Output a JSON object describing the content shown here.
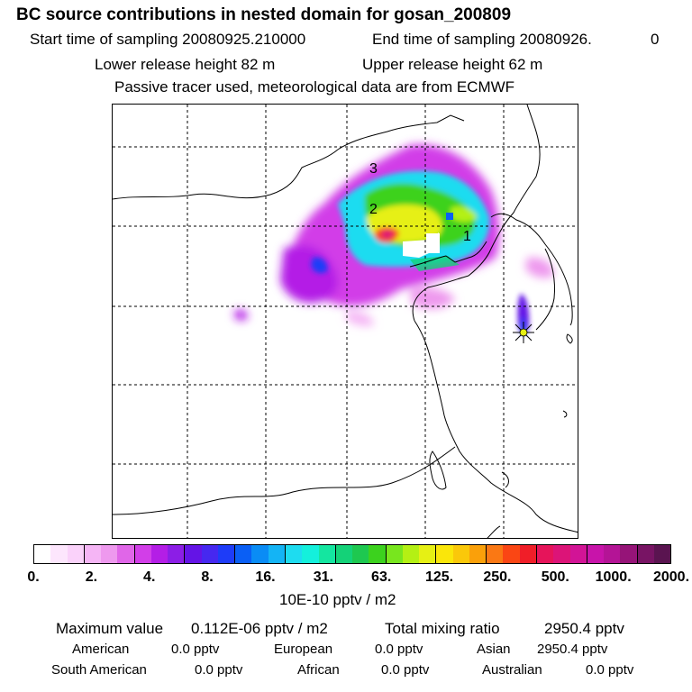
{
  "header": {
    "title": "BC  source contributions in nested domain for gosan_200809",
    "start_label": "Start time of sampling 20080925.210000",
    "end_label": "End time of sampling 20080926.",
    "end_value": "0",
    "lower_height": "Lower release height   82 m",
    "upper_height": "Upper release height   62 m",
    "tracer_note": "Passive tracer used, meteorological data are from ECMWF"
  },
  "map": {
    "markers": [
      "1",
      "2",
      "3"
    ],
    "receptor_icon": "star-burst-icon"
  },
  "colorbar": {
    "colors": [
      "#ffffff",
      "#fde6fd",
      "#fad2fa",
      "#f5b5f5",
      "#ee99ee",
      "#e066e8",
      "#d23ee8",
      "#b41ee6",
      "#8c1ee6",
      "#6414e6",
      "#4628f0",
      "#1e3cf8",
      "#0a5ff5",
      "#0a8cf5",
      "#14b4f5",
      "#1edcf0",
      "#14f0dc",
      "#14e6a0",
      "#14d278",
      "#1ec850",
      "#3cd21e",
      "#78e61e",
      "#b4f014",
      "#e6f014",
      "#fae60a",
      "#fac80a",
      "#faa00a",
      "#fa7814",
      "#fa4614",
      "#f01e28",
      "#e6145a",
      "#dc1478",
      "#d21496",
      "#c814aa",
      "#b41496",
      "#961478",
      "#781464",
      "#5a1450"
    ],
    "ticks": [
      "0.",
      "2.",
      "4.",
      "8.",
      "16.",
      "31.",
      "63.",
      "125.",
      "250.",
      "500.",
      "1000.",
      "2000."
    ],
    "unit": "10E-10 pptv / m2"
  },
  "stats": {
    "max_label": "Maximum value",
    "max_value": "0.112E-06 pptv / m2",
    "total_label": "Total mixing ratio",
    "total_value": "2950.4 pptv",
    "regions": [
      {
        "name": "American",
        "value": "0.0 pptv"
      },
      {
        "name": "European",
        "value": "0.0 pptv"
      },
      {
        "name": "Asian",
        "value": "2950.4 pptv"
      },
      {
        "name": "South American",
        "value": "0.0 pptv"
      },
      {
        "name": "African",
        "value": "0.0 pptv"
      },
      {
        "name": "Australian",
        "value": "0.0 pptv"
      }
    ]
  }
}
